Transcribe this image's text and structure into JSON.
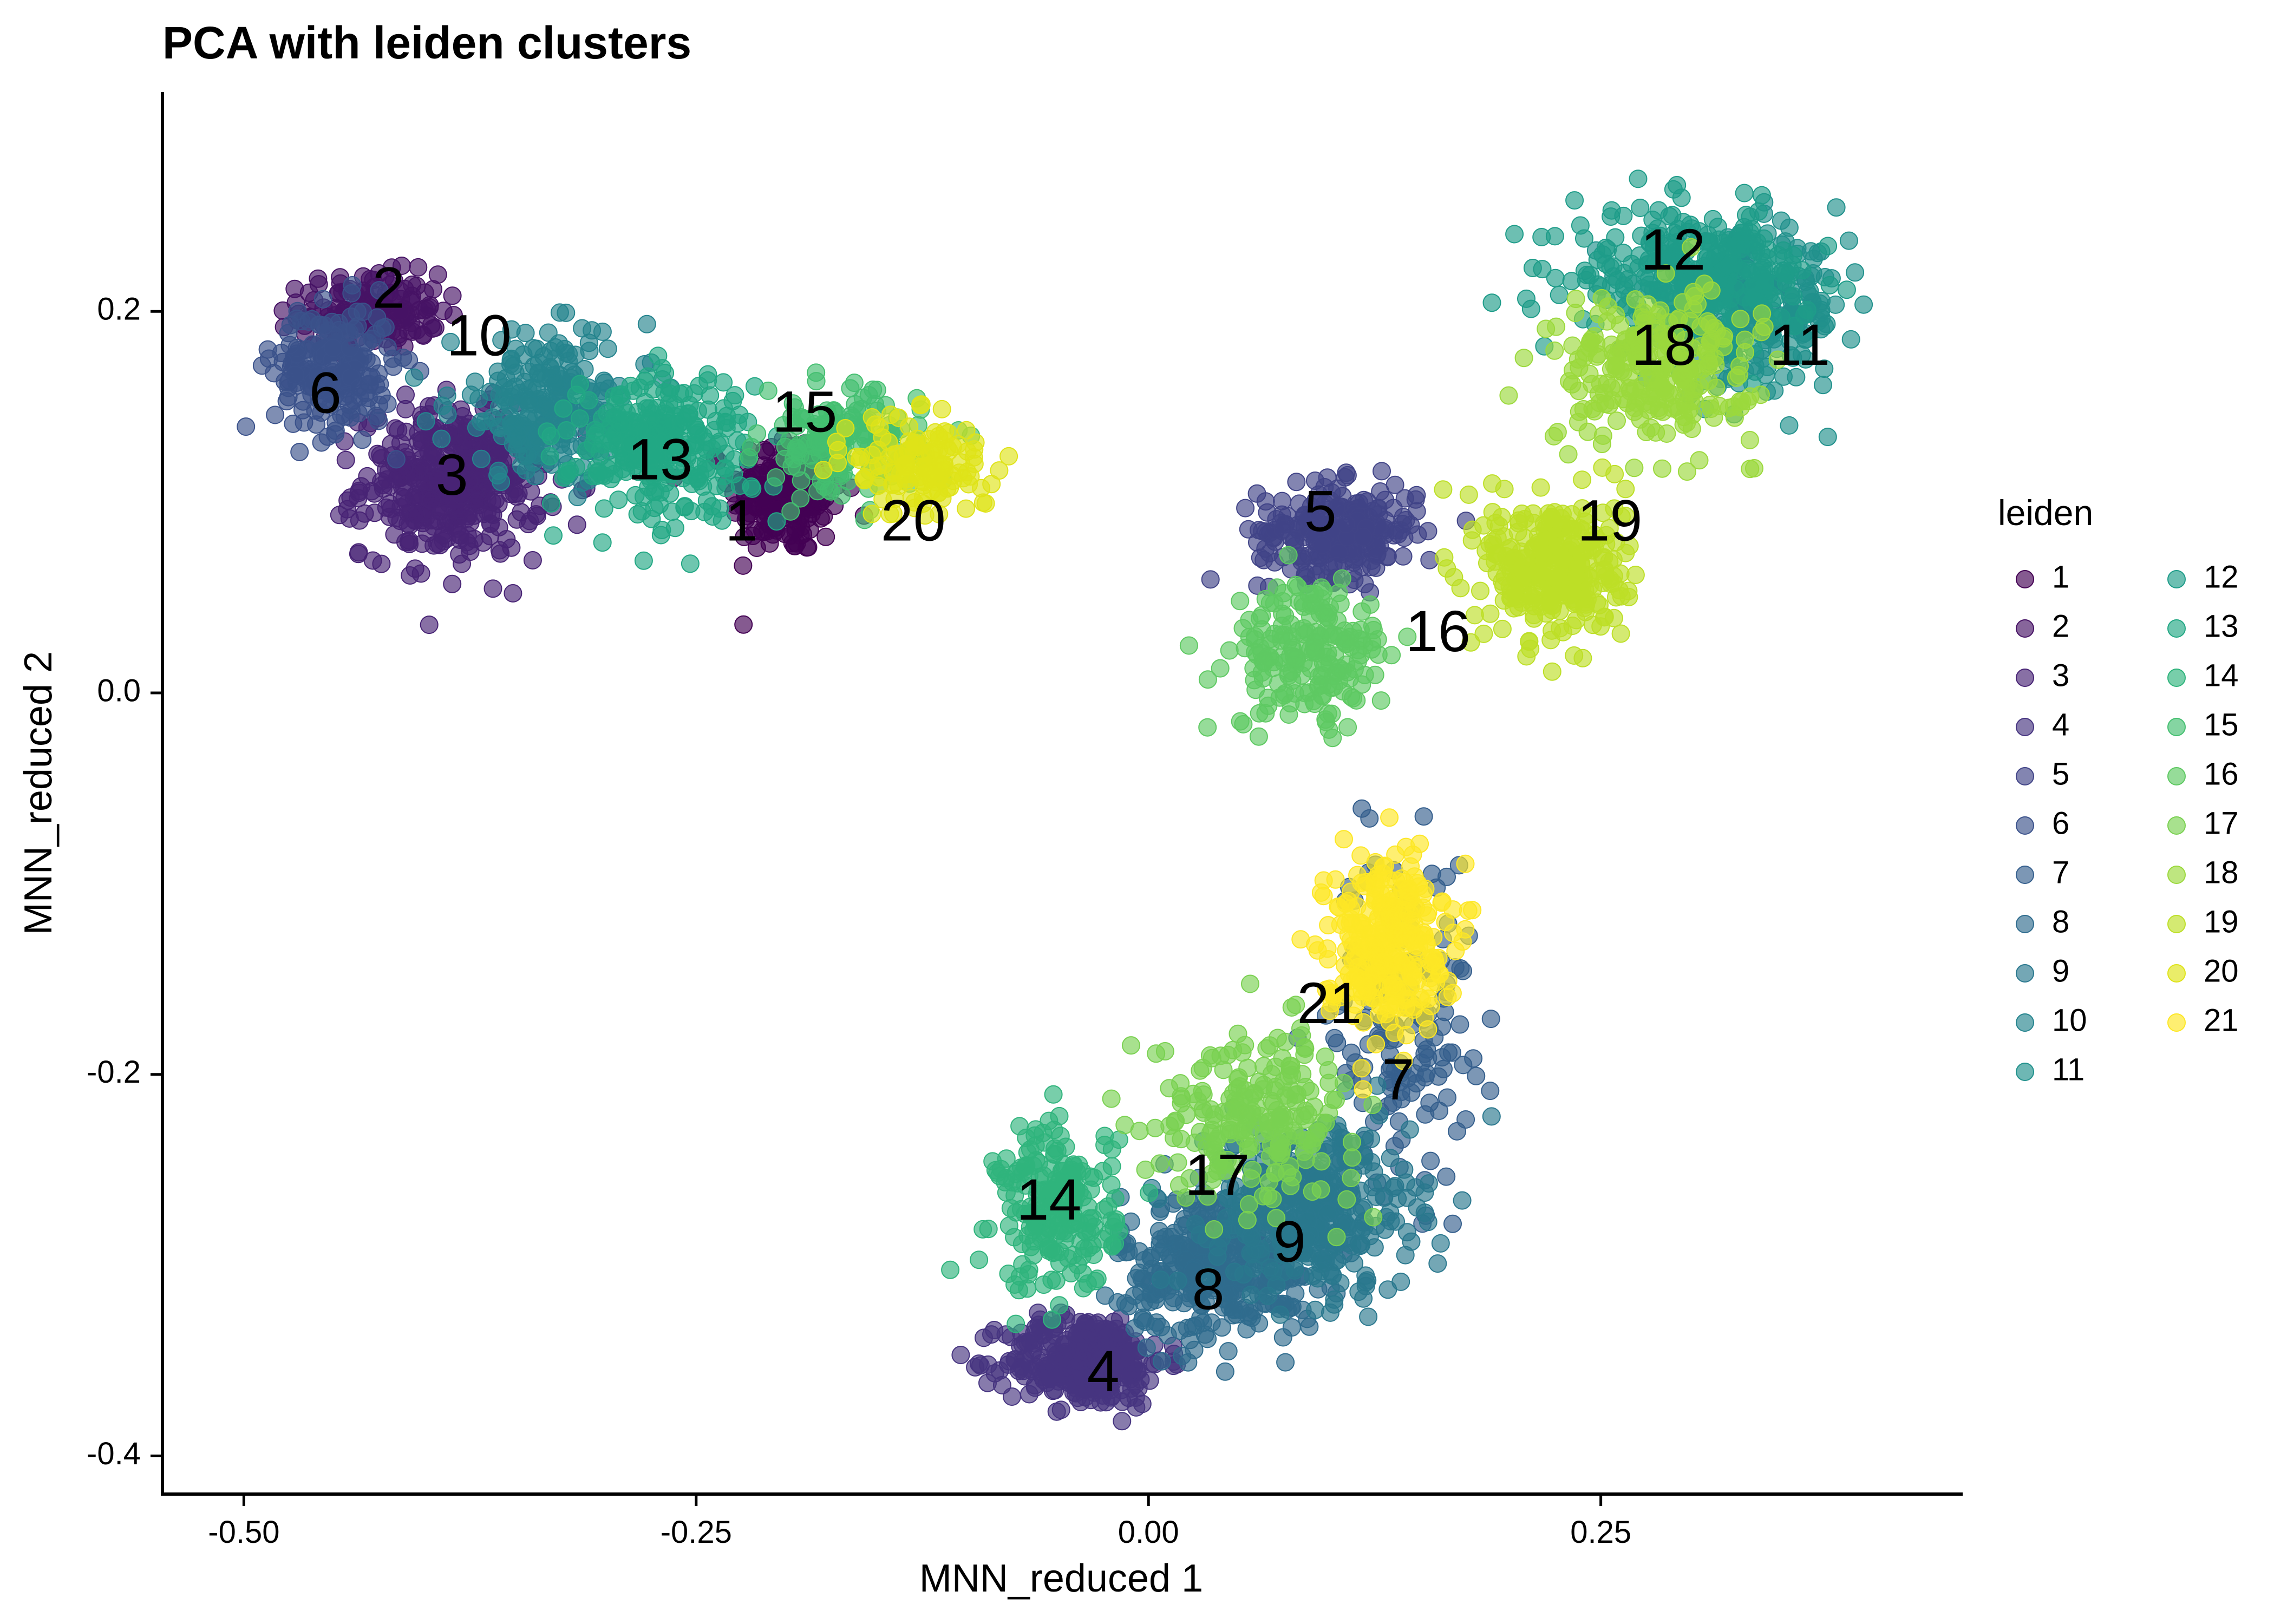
{
  "chart_data": {
    "type": "scatter",
    "title": "PCA with leiden clusters",
    "xlabel": "MNN_reduced 1",
    "ylabel": "MNN_reduced 2",
    "xlim": [
      -0.545,
      0.45
    ],
    "ylim": [
      -0.42,
      0.315
    ],
    "xticks": [
      -0.5,
      -0.25,
      0.0,
      0.25
    ],
    "xtick_labels": [
      "-0.50",
      "-0.25",
      "0.00",
      "0.25"
    ],
    "yticks": [
      -0.4,
      -0.2,
      0.0,
      0.2
    ],
    "ytick_labels": [
      "-0.4",
      "-0.2",
      "0.0",
      "0.2"
    ],
    "grid": false,
    "legend": {
      "title": "leiden",
      "placement": "right",
      "columns": 2,
      "entries": [
        "1",
        "2",
        "3",
        "4",
        "5",
        "6",
        "7",
        "8",
        "9",
        "10",
        "11",
        "12",
        "13",
        "14",
        "15",
        "16",
        "17",
        "18",
        "19",
        "20",
        "21"
      ]
    },
    "point_alpha": 0.65,
    "palette": "viridis",
    "colors": [
      "#440154",
      "#471365",
      "#482475",
      "#463480",
      "#414487",
      "#3b528b",
      "#355f8d",
      "#2f6c8e",
      "#2a788e",
      "#25848e",
      "#21918c",
      "#1e9c89",
      "#22a884",
      "#2fb47c",
      "#44bf70",
      "#5ec962",
      "#7ad151",
      "#9bd93c",
      "#bddf26",
      "#dfe318",
      "#fde725"
    ],
    "clusters": [
      {
        "name": "1",
        "label_x": -0.225,
        "label_y": 0.088,
        "center": [
          -0.2,
          0.105
        ],
        "spread": [
          0.028,
          0.03
        ],
        "count": 220
      },
      {
        "name": "2",
        "label_x": -0.42,
        "label_y": 0.21,
        "center": [
          -0.43,
          0.2
        ],
        "spread": [
          0.035,
          0.018
        ],
        "count": 160
      },
      {
        "name": "3",
        "label_x": -0.385,
        "label_y": 0.112,
        "center": [
          -0.385,
          0.11
        ],
        "spread": [
          0.045,
          0.035
        ],
        "count": 420
      },
      {
        "name": "4",
        "label_x": -0.025,
        "label_y": -0.358,
        "center": [
          -0.035,
          -0.35
        ],
        "spread": [
          0.04,
          0.022
        ],
        "count": 320
      },
      {
        "name": "5",
        "label_x": 0.095,
        "label_y": 0.093,
        "center": [
          0.105,
          0.085
        ],
        "spread": [
          0.04,
          0.022
        ],
        "count": 260
      },
      {
        "name": "6",
        "label_x": -0.455,
        "label_y": 0.155,
        "center": [
          -0.45,
          0.17
        ],
        "spread": [
          0.03,
          0.03
        ],
        "count": 220
      },
      {
        "name": "7",
        "label_x": 0.138,
        "label_y": -0.205,
        "center": [
          0.14,
          -0.17
        ],
        "spread": [
          0.035,
          0.08
        ],
        "count": 160
      },
      {
        "name": "8",
        "label_x": 0.033,
        "label_y": -0.315,
        "center": [
          0.04,
          -0.3
        ],
        "spread": [
          0.05,
          0.035
        ],
        "count": 380
      },
      {
        "name": "9",
        "label_x": 0.078,
        "label_y": -0.29,
        "center": [
          0.09,
          -0.27
        ],
        "spread": [
          0.05,
          0.04
        ],
        "count": 380
      },
      {
        "name": "10",
        "label_x": -0.37,
        "label_y": 0.185,
        "center": [
          -0.33,
          0.15
        ],
        "spread": [
          0.05,
          0.035
        ],
        "count": 240
      },
      {
        "name": "11",
        "label_x": 0.36,
        "label_y": 0.18,
        "center": [
          0.33,
          0.2
        ],
        "spread": [
          0.05,
          0.035
        ],
        "count": 280
      },
      {
        "name": "12",
        "label_x": 0.29,
        "label_y": 0.23,
        "center": [
          0.3,
          0.22
        ],
        "spread": [
          0.06,
          0.03
        ],
        "count": 280
      },
      {
        "name": "13",
        "label_x": -0.27,
        "label_y": 0.12,
        "center": [
          -0.27,
          0.13
        ],
        "spread": [
          0.045,
          0.035
        ],
        "count": 280
      },
      {
        "name": "14",
        "label_x": -0.055,
        "label_y": -0.268,
        "center": [
          -0.05,
          -0.27
        ],
        "spread": [
          0.03,
          0.04
        ],
        "count": 220
      },
      {
        "name": "15",
        "label_x": -0.19,
        "label_y": 0.145,
        "center": [
          -0.17,
          0.13
        ],
        "spread": [
          0.04,
          0.025
        ],
        "count": 160
      },
      {
        "name": "16",
        "label_x": 0.16,
        "label_y": 0.03,
        "center": [
          0.09,
          0.02
        ],
        "spread": [
          0.04,
          0.035
        ],
        "count": 200
      },
      {
        "name": "17",
        "label_x": 0.038,
        "label_y": -0.255,
        "center": [
          0.06,
          -0.22
        ],
        "spread": [
          0.05,
          0.04
        ],
        "count": 220
      },
      {
        "name": "18",
        "label_x": 0.285,
        "label_y": 0.18,
        "center": [
          0.28,
          0.17
        ],
        "spread": [
          0.05,
          0.035
        ],
        "count": 260
      },
      {
        "name": "19",
        "label_x": 0.255,
        "label_y": 0.088,
        "center": [
          0.225,
          0.065
        ],
        "spread": [
          0.035,
          0.035
        ],
        "count": 320
      },
      {
        "name": "20",
        "label_x": -0.13,
        "label_y": 0.088,
        "center": [
          -0.125,
          0.12
        ],
        "spread": [
          0.035,
          0.025
        ],
        "count": 140
      },
      {
        "name": "21",
        "label_x": 0.1,
        "label_y": -0.165,
        "center": [
          0.13,
          -0.13
        ],
        "spread": [
          0.03,
          0.04
        ],
        "count": 300
      }
    ]
  }
}
